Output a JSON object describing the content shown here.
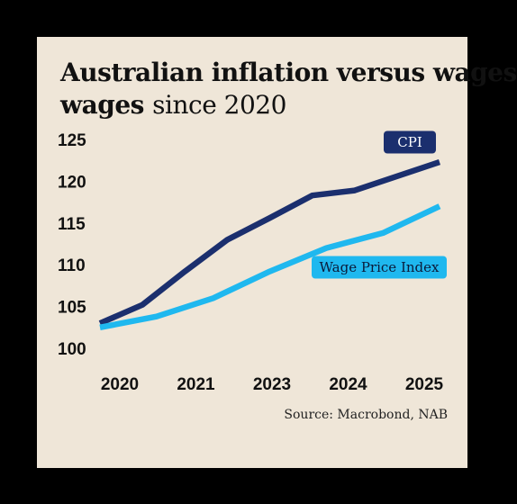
{
  "colors": {
    "background": "#efe6d8",
    "frame": "#000000",
    "cpi": "#1b2f6e",
    "wpi": "#1fb8ef",
    "text": "#111111"
  },
  "chart_data": {
    "type": "line",
    "title": "Australian inflation versus wages since 2020",
    "title_bold": "Australian inflation versus wages",
    "title_light": "since 2020",
    "xlabel": "",
    "ylabel": "",
    "x_tick_labels": [
      "2020",
      "2021",
      "2023",
      "2024",
      "2025"
    ],
    "y_tick_labels": [
      "125",
      "120",
      "115",
      "110",
      "105",
      "100"
    ],
    "ylim": [
      100,
      125
    ],
    "grid": false,
    "legend": "direct labels on lines",
    "series": [
      {
        "name": "CPI",
        "label_style": "dark box, white text",
        "values": [
          103.0,
          105.2,
          109.2,
          113.0,
          115.6,
          118.3,
          118.9,
          120.6,
          122.3
        ]
      },
      {
        "name": "Wage Price Index",
        "label_style": "light blue box, dark text",
        "values": [
          102.5,
          103.8,
          106.0,
          109.2,
          112.0,
          113.8,
          117.0
        ]
      }
    ],
    "source": "Source: Macrobond, NAB"
  }
}
